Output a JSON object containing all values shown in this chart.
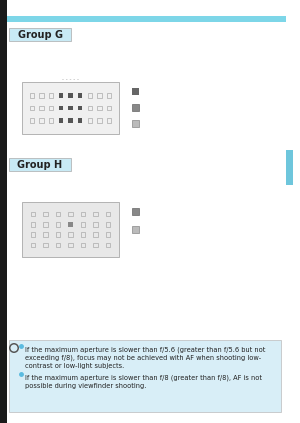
{
  "bg_color": "#ffffff",
  "left_strip_color": "#1a1a1a",
  "cyan_bar_color": "#7dd6e8",
  "group_label_bg": "#c8eaf5",
  "group_label_border": "#aaaaaa",
  "note_bg": "#d8eef7",
  "note_border": "#bbbbbb",
  "right_tab_color": "#6ec6dc",
  "group_g_label": "Group G",
  "group_h_label": "Group H",
  "note_bullet1_line1": "If the maximum aperture is slower than f/5.6 (greater than f/5.6 but not",
  "note_bullet1_line2": "exceeding f/8), focus may not be achieved with AF when shooting low-",
  "note_bullet1_line3": "contrast or low-light subjects.",
  "note_bullet2_line1": "If the maximum aperture is slower than f/8 (greater than f/8), AF is not",
  "note_bullet2_line2": "possible during viewfinder shooting.",
  "grid_g_bg": "#f0f0f0",
  "grid_h_bg": "#e8e8e8",
  "grid_border": "#999999",
  "dot_solid_dark": "#555555",
  "dot_solid_mid": "#888888",
  "dot_hollow": "#aaaaaa",
  "icon_dark": "#666666",
  "icon_mid": "#888888",
  "icon_light": "#bbbbbb",
  "text_color": "#222222",
  "bullet_color": "#5abbe0"
}
